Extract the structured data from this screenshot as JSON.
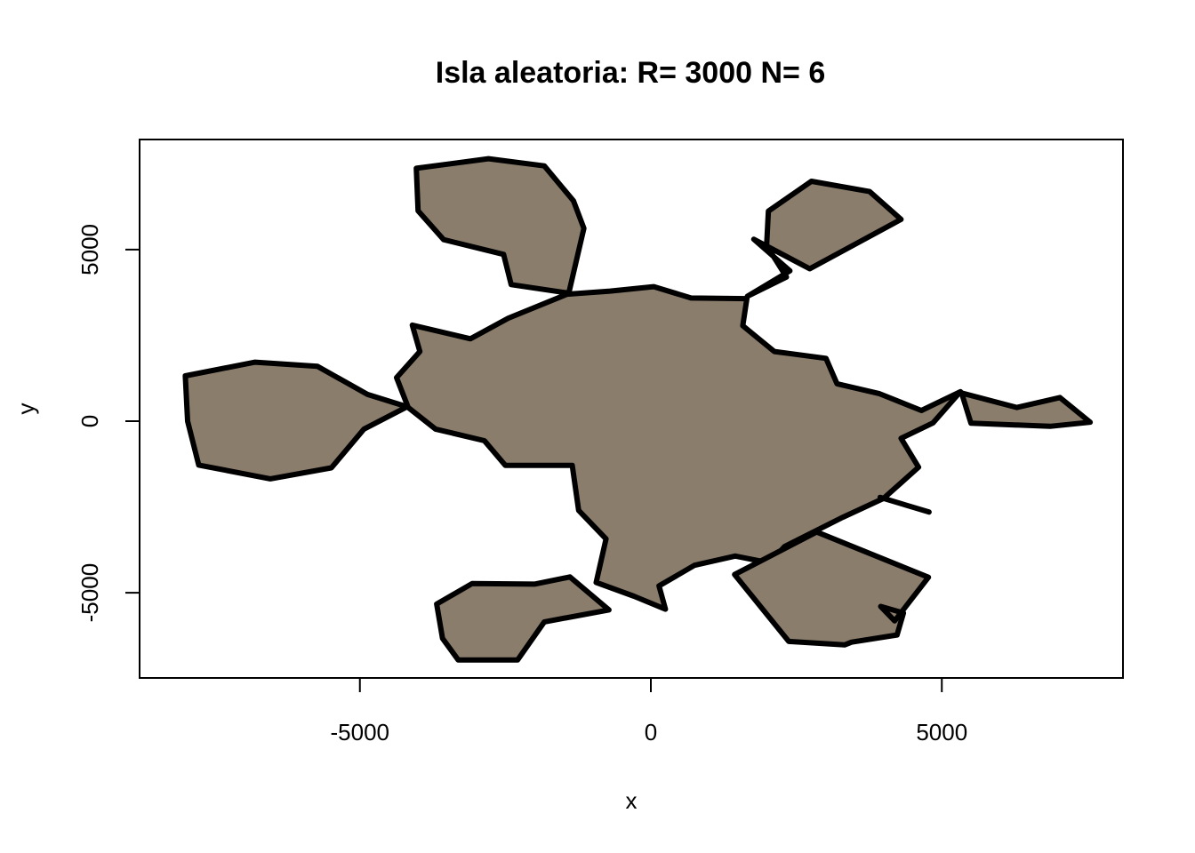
{
  "chart_data": {
    "type": "polygon-map",
    "title": "Isla aleatoria: R= 3000  N= 6",
    "xlabel": "x",
    "ylabel": "y",
    "xlim": [
      -8800,
      8200
    ],
    "ylim": [
      -7500,
      8200
    ],
    "x_ticks": [
      {
        "value": -5000,
        "label": "-5000"
      },
      {
        "value": 0,
        "label": "0"
      },
      {
        "value": 5000,
        "label": "5000"
      }
    ],
    "y_ticks": [
      {
        "value": -5000,
        "label": "-5000"
      },
      {
        "value": 5000,
        "label": "5000"
      }
    ],
    "grid": false,
    "legend": "none",
    "fill_color": "#8a7d6c",
    "stroke_color": "#000000",
    "polygons": [
      {
        "name": "main-island",
        "points": [
          [
            -1440,
            3700
          ],
          [
            -2450,
            3000
          ],
          [
            -3100,
            2400
          ],
          [
            -4100,
            2800
          ],
          [
            -3970,
            2030
          ],
          [
            -4370,
            1270
          ],
          [
            -4170,
            400
          ],
          [
            -3700,
            -230
          ],
          [
            -2860,
            -570
          ],
          [
            -2500,
            -1290
          ],
          [
            -1350,
            -1290
          ],
          [
            -1240,
            -2600
          ],
          [
            -770,
            -3430
          ],
          [
            -940,
            -4700
          ],
          [
            -290,
            -5100
          ],
          [
            250,
            -5480
          ],
          [
            140,
            -4800
          ],
          [
            750,
            -4200
          ],
          [
            1450,
            -3930
          ],
          [
            2040,
            -4130
          ],
          [
            2300,
            -3650
          ],
          [
            3300,
            -2800
          ],
          [
            4000,
            -2250
          ],
          [
            4600,
            -1340
          ],
          [
            4300,
            -500
          ],
          [
            4850,
            -50
          ],
          [
            5320,
            860
          ],
          [
            4650,
            310
          ],
          [
            3930,
            800
          ],
          [
            3200,
            1090
          ],
          [
            3010,
            1830
          ],
          [
            2120,
            2030
          ],
          [
            1580,
            2780
          ],
          [
            1650,
            3570
          ],
          [
            690,
            3590
          ],
          [
            50,
            3920
          ],
          [
            -700,
            3790
          ]
        ]
      },
      {
        "name": "island-north-west",
        "points": [
          [
            -4030,
            7370
          ],
          [
            -2790,
            7650
          ],
          [
            -1830,
            7440
          ],
          [
            -1330,
            6420
          ],
          [
            -1150,
            5620
          ],
          [
            -1410,
            3730
          ],
          [
            -2400,
            3980
          ],
          [
            -2530,
            4860
          ],
          [
            -3560,
            5290
          ],
          [
            -4000,
            6130
          ]
        ]
      },
      {
        "name": "island-north-east",
        "points": [
          [
            2020,
            6120
          ],
          [
            2760,
            6990
          ],
          [
            3760,
            6690
          ],
          [
            4300,
            5880
          ],
          [
            2730,
            4440
          ],
          [
            1770,
            5300
          ],
          [
            2390,
            4380
          ],
          [
            1660,
            3640
          ],
          [
            2330,
            4200
          ],
          [
            1990,
            5120
          ]
        ]
      },
      {
        "name": "island-west",
        "points": [
          [
            -8000,
            1320
          ],
          [
            -6800,
            1720
          ],
          [
            -5730,
            1600
          ],
          [
            -4870,
            780
          ],
          [
            -4190,
            420
          ],
          [
            -4930,
            -230
          ],
          [
            -5490,
            -1360
          ],
          [
            -6540,
            -1680
          ],
          [
            -7770,
            -1280
          ],
          [
            -7960,
            0
          ]
        ]
      },
      {
        "name": "island-east",
        "points": [
          [
            5340,
            820
          ],
          [
            6290,
            400
          ],
          [
            7030,
            690
          ],
          [
            7550,
            -30
          ],
          [
            6860,
            -150
          ],
          [
            5500,
            -60
          ]
        ]
      },
      {
        "name": "island-south-west",
        "points": [
          [
            -3680,
            -5330
          ],
          [
            -3070,
            -4730
          ],
          [
            -2000,
            -4750
          ],
          [
            -1390,
            -4540
          ],
          [
            -720,
            -5500
          ],
          [
            -1830,
            -5850
          ],
          [
            -2290,
            -6960
          ],
          [
            -3310,
            -6960
          ],
          [
            -3580,
            -6330
          ]
        ]
      },
      {
        "name": "island-south-east",
        "points": [
          [
            1440,
            -4470
          ],
          [
            2850,
            -3230
          ],
          [
            4770,
            -4550
          ],
          [
            4190,
            -5820
          ],
          [
            3950,
            -5400
          ],
          [
            4340,
            -5590
          ],
          [
            4230,
            -6230
          ],
          [
            3450,
            -6440
          ],
          [
            3330,
            -6520
          ],
          [
            2370,
            -6420
          ]
        ]
      }
    ],
    "open_paths": [
      {
        "name": "southeast-spit",
        "points": [
          [
            3940,
            -2220
          ],
          [
            4780,
            -2650
          ]
        ]
      }
    ]
  }
}
